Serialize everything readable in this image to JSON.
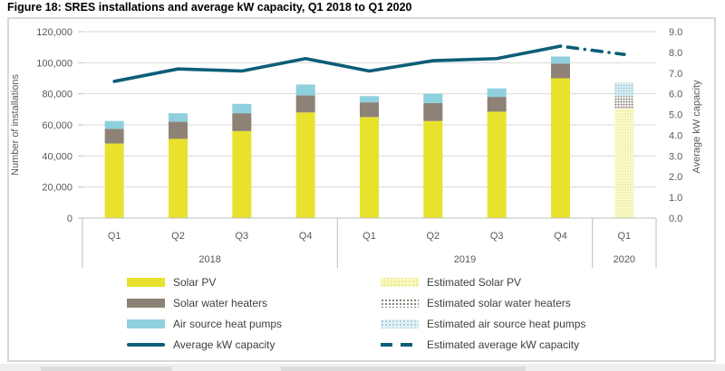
{
  "chart_data": {
    "type": "bar",
    "subtype": "stacked-bars-with-line-combo",
    "title": "Figure 18: SRES installations and average kW capacity, Q1 2018 to Q1 2020",
    "categories": [
      "Q1",
      "Q2",
      "Q3",
      "Q4",
      "Q1",
      "Q2",
      "Q3",
      "Q4",
      "Q1"
    ],
    "year_groups": [
      {
        "label": "2018",
        "count": 4
      },
      {
        "label": "2019",
        "count": 4
      },
      {
        "label": "2020",
        "count": 1
      }
    ],
    "bar_series": [
      {
        "name": "Solar PV",
        "color": "#e8e22d",
        "values": [
          48000,
          51000,
          56000,
          68000,
          65000,
          62500,
          68500,
          90000,
          null
        ]
      },
      {
        "name": "Solar water heaters",
        "color": "#8e8276",
        "values": [
          9500,
          11000,
          11500,
          11000,
          9500,
          11500,
          9500,
          9500,
          null
        ]
      },
      {
        "name": "Air source heat pumps",
        "color": "#8fd0de",
        "values": [
          5000,
          5500,
          6000,
          7000,
          4000,
          6000,
          5500,
          4500,
          null
        ]
      },
      {
        "name": "Estimated Solar PV",
        "pattern": "pat-est-pv",
        "values": [
          null,
          null,
          null,
          null,
          null,
          null,
          null,
          null,
          70500
        ]
      },
      {
        "name": "Estimated solar water heaters",
        "pattern": "pat-est-swh",
        "values": [
          null,
          null,
          null,
          null,
          null,
          null,
          null,
          null,
          8000
        ]
      },
      {
        "name": "Estimated air source heat pumps",
        "pattern": "pat-est-ashp",
        "values": [
          null,
          null,
          null,
          null,
          null,
          null,
          null,
          null,
          8500
        ]
      }
    ],
    "line_series": [
      {
        "name": "Average kW capacity",
        "color": "#0d5e77",
        "style": "solid",
        "values": [
          6.6,
          7.2,
          7.1,
          7.7,
          7.1,
          7.6,
          7.7,
          8.3,
          null
        ]
      },
      {
        "name": "Estimated average kW capacity",
        "color": "#0d5e77",
        "style": "dashed",
        "values": [
          null,
          null,
          null,
          null,
          null,
          null,
          null,
          8.3,
          7.9
        ]
      }
    ],
    "axes": {
      "left": {
        "title": "Number of installations",
        "min": 0,
        "max": 120000,
        "step": 20000,
        "tick_labels": [
          "0",
          "20,000",
          "40,000",
          "60,000",
          "80,000",
          "100,000",
          "120,000"
        ]
      },
      "right": {
        "title": "Average kW capacity",
        "min": 0,
        "max": 9,
        "step": 1,
        "tick_labels": [
          "0.0",
          "1.0",
          "2.0",
          "3.0",
          "4.0",
          "5.0",
          "6.0",
          "7.0",
          "8.0",
          "9.0"
        ]
      }
    },
    "grid": true,
    "legend_position": "bottom",
    "colors": {
      "gridline": "#d9d9d9",
      "axis_line": "#bfbfbf",
      "tick_text": "#595959",
      "legend_text": "#3f3f3f",
      "line": "#0d5e77"
    }
  }
}
